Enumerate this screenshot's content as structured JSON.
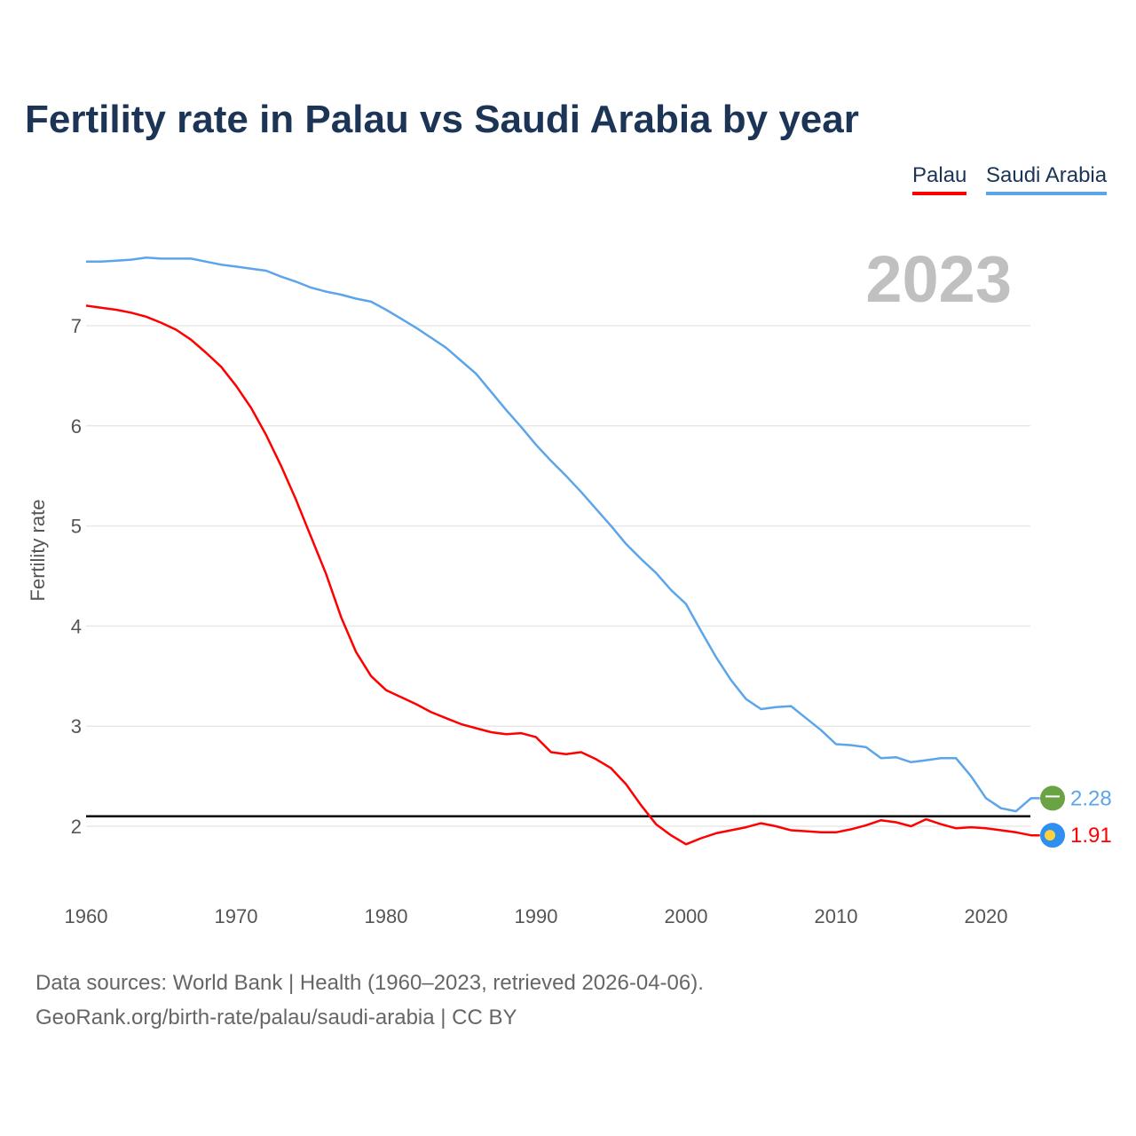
{
  "title": "Fertility rate in Palau vs Saudi Arabia by year",
  "footer": {
    "line1": "Data sources: World Bank | Health (1960–2023, retrieved 2026-04-06).",
    "line2": "GeoRank.org/birth-rate/palau/saudi-arabia | CC BY"
  },
  "chart_data": {
    "type": "line",
    "title": "Fertility rate in Palau vs Saudi Arabia by year",
    "ylabel": "Fertility rate",
    "xlabel": "",
    "year_label": "2023",
    "x_ticks": [
      "1960",
      "1970",
      "1980",
      "1990",
      "2000",
      "2010",
      "2020"
    ],
    "y_ticks": [
      "2",
      "3",
      "4",
      "5",
      "6",
      "7"
    ],
    "xlim": [
      1960,
      2023
    ],
    "ylim": [
      1.45,
      7.8
    ],
    "grid": true,
    "legend_position": "top-right",
    "reference_line": 2.1,
    "x_start": 1960,
    "series": [
      {
        "name": "Palau",
        "color": "#ff0000",
        "end_label": "1.91",
        "flag_icon": "palau-flag-icon",
        "values": [
          7.2,
          7.18,
          7.16,
          7.13,
          7.09,
          7.03,
          6.96,
          6.86,
          6.73,
          6.59,
          6.4,
          6.18,
          5.91,
          5.6,
          5.26,
          4.89,
          4.52,
          4.09,
          3.74,
          3.5,
          3.36,
          3.29,
          3.22,
          3.14,
          3.08,
          3.02,
          2.98,
          2.94,
          2.92,
          2.93,
          2.89,
          2.74,
          2.72,
          2.74,
          2.67,
          2.58,
          2.42,
          2.21,
          2.02,
          1.91,
          1.82,
          1.88,
          1.93,
          1.96,
          1.99,
          2.03,
          2.0,
          1.96,
          1.95,
          1.94,
          1.94,
          1.97,
          2.01,
          2.06,
          2.04,
          2.0,
          2.07,
          2.02,
          1.98,
          1.99,
          1.98,
          1.96,
          1.94,
          1.91
        ]
      },
      {
        "name": "Saudi Arabia",
        "color": "#5da5ea",
        "end_label": "2.28",
        "flag_icon": "saudi-arabia-flag-icon",
        "values": [
          7.64,
          7.64,
          7.65,
          7.66,
          7.68,
          7.67,
          7.67,
          7.67,
          7.64,
          7.61,
          7.59,
          7.57,
          7.55,
          7.49,
          7.44,
          7.38,
          7.34,
          7.31,
          7.27,
          7.24,
          7.16,
          7.07,
          6.98,
          6.88,
          6.78,
          6.65,
          6.52,
          6.34,
          6.16,
          5.99,
          5.81,
          5.65,
          5.5,
          5.34,
          5.17,
          5.0,
          4.82,
          4.67,
          4.53,
          4.36,
          4.22,
          3.95,
          3.69,
          3.46,
          3.27,
          3.17,
          3.19,
          3.2,
          3.08,
          2.96,
          2.82,
          2.81,
          2.79,
          2.68,
          2.69,
          2.64,
          2.66,
          2.68,
          2.68,
          2.5,
          2.28,
          2.18,
          2.15,
          2.28
        ]
      }
    ]
  }
}
